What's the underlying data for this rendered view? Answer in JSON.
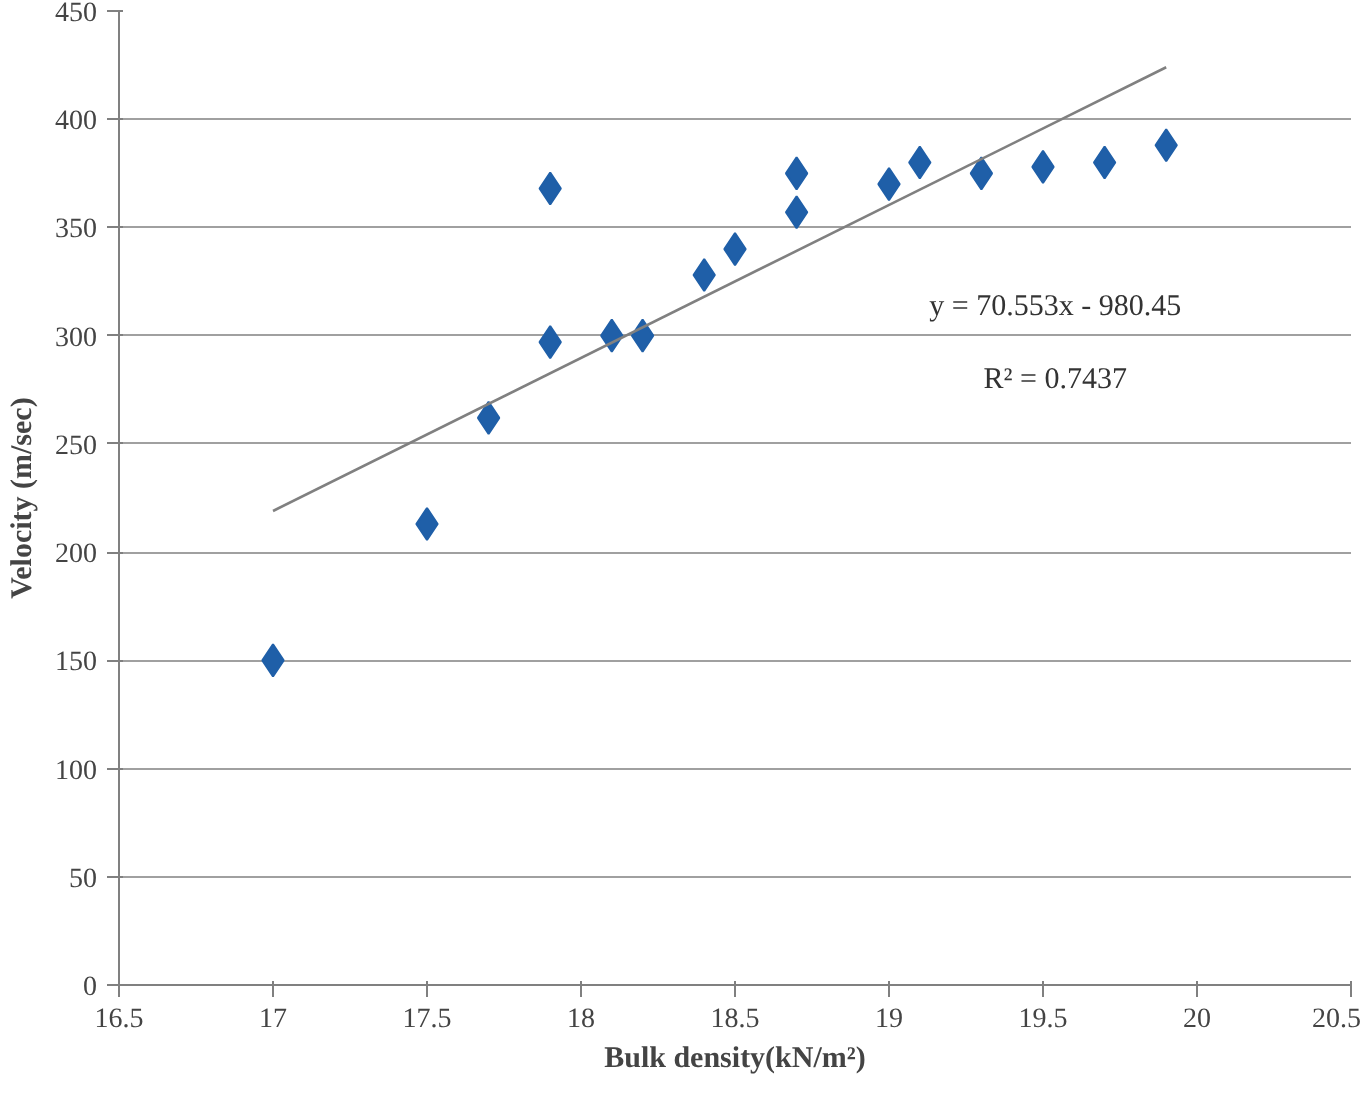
{
  "chart_data": {
    "type": "scatter",
    "xlabel": "Bulk density(kN/m²)",
    "ylabel": "Velocity (m/sec)",
    "xlim": [
      16.5,
      20.5
    ],
    "xticks": [
      16.5,
      17,
      17.5,
      18,
      18.5,
      19,
      19.5,
      20,
      20.5
    ],
    "ylim": [
      0,
      450
    ],
    "yticks": [
      0,
      50,
      100,
      150,
      200,
      250,
      300,
      350,
      400,
      450
    ],
    "grid": "y",
    "series": [
      {
        "color": "#1f5fa8",
        "marker": "diamond",
        "x": [
          17,
          17.5,
          17.7,
          17.9,
          17.9,
          18.1,
          18.2,
          18.4,
          18.5,
          18.7,
          18.7,
          19,
          19.1,
          19.3,
          19.5,
          19.7,
          19.9
        ],
        "values": [
          150,
          213,
          262,
          297,
          368,
          300,
          300,
          328,
          340,
          357,
          375,
          370,
          380,
          375,
          378,
          380,
          388
        ]
      },
      {
        "type": "line",
        "color": "#808080",
        "x": [
          17,
          19.9
        ],
        "values": [
          219,
          424
        ]
      }
    ],
    "annotations": [
      "y = 70.553x - 980.45",
      "R² = 0.7437"
    ]
  }
}
